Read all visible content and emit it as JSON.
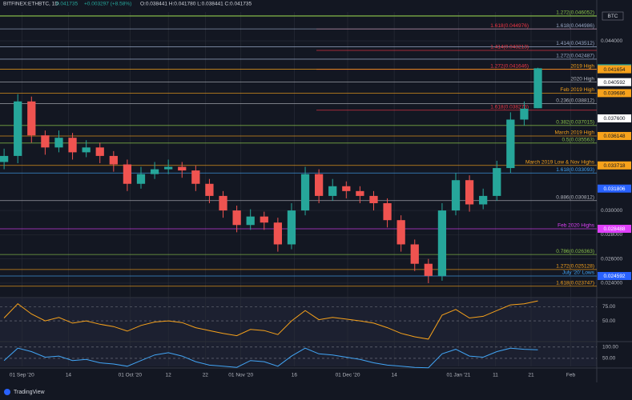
{
  "header": {
    "symbol": "BITFINEX:ETHBTC, 1D",
    "last": "0.041735",
    "change": "+0.003297 (+8.58%)",
    "ohlc": "O:0.038441 H:0.041780 L:0.038441 C:0.041735",
    "currency": "BTC"
  },
  "footer": {
    "brand": "TradingView"
  },
  "chart_data": {
    "type": "candlestick",
    "up_color": "#26a69a",
    "down_color": "#ef5350",
    "candles": [
      [
        0.034,
        0.0351,
        0.0334,
        0.0345
      ],
      [
        0.0345,
        0.0396,
        0.0339,
        0.039
      ],
      [
        0.039,
        0.0394,
        0.0356,
        0.0362
      ],
      [
        0.0362,
        0.0366,
        0.0346,
        0.0352
      ],
      [
        0.0352,
        0.0366,
        0.0348,
        0.036
      ],
      [
        0.036,
        0.0364,
        0.0342,
        0.0348
      ],
      [
        0.0348,
        0.0358,
        0.0344,
        0.0352
      ],
      [
        0.0352,
        0.0356,
        0.0339,
        0.0345
      ],
      [
        0.0345,
        0.0349,
        0.0332,
        0.0338
      ],
      [
        0.0338,
        0.0342,
        0.0316,
        0.0322
      ],
      [
        0.0322,
        0.0336,
        0.0318,
        0.033
      ],
      [
        0.033,
        0.034,
        0.0326,
        0.0334
      ],
      [
        0.0334,
        0.0342,
        0.033,
        0.0336
      ],
      [
        0.0336,
        0.034,
        0.0327,
        0.0333
      ],
      [
        0.0333,
        0.0337,
        0.0316,
        0.0322
      ],
      [
        0.0322,
        0.0326,
        0.0306,
        0.0312
      ],
      [
        0.0312,
        0.0316,
        0.0294,
        0.03
      ],
      [
        0.03,
        0.0304,
        0.0282,
        0.0288
      ],
      [
        0.0288,
        0.0301,
        0.0284,
        0.0295
      ],
      [
        0.0295,
        0.0299,
        0.0284,
        0.029
      ],
      [
        0.029,
        0.0294,
        0.0266,
        0.0272
      ],
      [
        0.0272,
        0.0306,
        0.0268,
        0.03
      ],
      [
        0.03,
        0.0336,
        0.0296,
        0.033
      ],
      [
        0.033,
        0.0334,
        0.0306,
        0.0312
      ],
      [
        0.0312,
        0.0326,
        0.0308,
        0.032
      ],
      [
        0.032,
        0.0324,
        0.031,
        0.0316
      ],
      [
        0.0316,
        0.032,
        0.0306,
        0.0312
      ],
      [
        0.0312,
        0.0316,
        0.03,
        0.0306
      ],
      [
        0.0306,
        0.031,
        0.0286,
        0.0292
      ],
      [
        0.0292,
        0.0296,
        0.0266,
        0.0272
      ],
      [
        0.0272,
        0.0276,
        0.025,
        0.0256
      ],
      [
        0.0256,
        0.026,
        0.024,
        0.0246
      ],
      [
        0.0246,
        0.0306,
        0.0242,
        0.03
      ],
      [
        0.03,
        0.0331,
        0.0296,
        0.0325
      ],
      [
        0.0325,
        0.0329,
        0.0299,
        0.0305
      ],
      [
        0.0305,
        0.0318,
        0.0301,
        0.0312
      ],
      [
        0.0312,
        0.0341,
        0.0308,
        0.0335
      ],
      [
        0.0335,
        0.0381,
        0.0331,
        0.0375
      ],
      [
        0.0375,
        0.039,
        0.037,
        0.0384
      ],
      [
        0.038441,
        0.04178,
        0.038441,
        0.041735
      ]
    ],
    "xlim": [
      -0.3,
      43.3
    ],
    "xticks": [
      {
        "value": 1.3,
        "label": "01 Sep '20"
      },
      {
        "value": 4.7,
        "label": "14"
      },
      {
        "value": 9.2,
        "label": "01 Oct '20"
      },
      {
        "value": 12.0,
        "label": "12"
      },
      {
        "value": 14.7,
        "label": "22"
      },
      {
        "value": 17.3,
        "label": "01 Nov '20"
      },
      {
        "value": 21.2,
        "label": "16"
      },
      {
        "value": 25.1,
        "label": "01 Dec '20"
      },
      {
        "value": 28.5,
        "label": "14"
      },
      {
        "value": 33.2,
        "label": "01 Jan '21"
      },
      {
        "value": 35.9,
        "label": "11"
      },
      {
        "value": 38.5,
        "label": "21"
      },
      {
        "value": 41.4,
        "label": "Feb"
      }
    ],
    "ylim": [
      0.02294,
      0.04638
    ],
    "yticks": [
      {
        "value": 0.044,
        "label": "0.044000"
      },
      {
        "value": 0.03,
        "label": "0.030000"
      },
      {
        "value": 0.028,
        "label": "0.028000"
      },
      {
        "value": 0.026,
        "label": "0.026000"
      },
      {
        "value": 0.024,
        "label": "0.024000"
      }
    ],
    "levels": [
      {
        "label": "1.272(0.046052)",
        "value": 0.046052,
        "color": "#8bc34a"
      },
      {
        "label": "1.618(0.044976)",
        "value": 0.044976,
        "color": "#f23645"
      },
      {
        "label": "1.618(0.044986)",
        "value": 0.044986,
        "color": "#9aa9c7"
      },
      {
        "label": "1.414(0.043512)",
        "value": 0.043512,
        "color": "#9aa9c7"
      },
      {
        "label": "1.414(0.043213)",
        "value": 0.043213,
        "color": "#f23645"
      },
      {
        "label": "1.272(0.042487)",
        "value": 0.042487,
        "color": "#9aa9c7"
      },
      {
        "label": "1.272(0.041646)",
        "value": 0.041646,
        "color": "#f23645"
      },
      {
        "label": "2019 High",
        "value": 0.041654,
        "color": "#f7a21b"
      },
      {
        "label": "2020 High",
        "value": 0.040592,
        "color": "#b2b5be"
      },
      {
        "label": "Feb 2019 High",
        "value": 0.039686,
        "color": "#f7a21b"
      },
      {
        "label": "0.236(0.038812)",
        "value": 0.038812,
        "color": "#b2b5be"
      },
      {
        "label": "1.618(0.038273)",
        "value": 0.038273,
        "color": "#f23645"
      },
      {
        "label": "0.382(0.037015)",
        "value": 0.037015,
        "color": "#8bc34a"
      },
      {
        "label": "March 2019 High",
        "value": 0.036148,
        "color": "#f7a21b"
      },
      {
        "label": "0.5(0.035563)",
        "value": 0.035563,
        "color": "#8bc34a"
      },
      {
        "label": "March 2019 Low & Nov Highs",
        "value": 0.033718,
        "color": "#f7a21b"
      },
      {
        "label": "1.618(0.033093)",
        "value": 0.033093,
        "color": "#42a5f5"
      },
      {
        "label": "0.886(0.030812)",
        "value": 0.030812,
        "color": "#b2b5be"
      },
      {
        "label": "Feb 2020 Highs",
        "value": 0.028488,
        "color": "#e040fb"
      },
      {
        "label": "0.786(0.026363)",
        "value": 0.026363,
        "color": "#8bc34a"
      },
      {
        "label": "1.272(0.025128)",
        "value": 0.025128,
        "color": "#f7a21b"
      },
      {
        "label": "July '20' Lows",
        "value": 0.024592,
        "color": "#42a5f5"
      },
      {
        "label": "1.618(0.023747)",
        "value": 0.023747,
        "color": "#f7a21b"
      }
    ],
    "markers": [
      {
        "value": 0.041735,
        "label": "0.041735",
        "color": "#26a69a"
      },
      {
        "value": 0.041654,
        "label": "0.041654",
        "color": "#f7a21b"
      },
      {
        "value": 0.040592,
        "label": "0.040592",
        "color": "#ffffff"
      },
      {
        "value": 0.039686,
        "label": "0.039686",
        "color": "#f7a21b"
      },
      {
        "value": 0.0376,
        "label": "0.037600",
        "color": "#ffffff"
      },
      {
        "value": 0.036148,
        "label": "0.036148",
        "color": "#f7a21b"
      },
      {
        "value": 0.033718,
        "label": "0.033718",
        "color": "#f7a21b"
      },
      {
        "value": 0.031806,
        "label": "0.031806",
        "color": "#2962ff"
      },
      {
        "value": 0.028488,
        "label": "0.028488",
        "color": "#e040fb"
      },
      {
        "value": 0.024592,
        "label": "0.024592",
        "color": "#2962ff"
      }
    ],
    "rsi": {
      "values": [
        55,
        80,
        62,
        50,
        56,
        46,
        50,
        44,
        40,
        32,
        42,
        48,
        50,
        47,
        38,
        33,
        28,
        24,
        35,
        33,
        26,
        50,
        68,
        52,
        56,
        53,
        50,
        46,
        38,
        28,
        22,
        18,
        60,
        70,
        55,
        58,
        68,
        78,
        80,
        85
      ],
      "color": "#f7a21b",
      "ylim": [
        15,
        88
      ],
      "yticks": [
        {
          "value": 75,
          "label": "75.00"
        },
        {
          "value": 50,
          "label": "50.00"
        }
      ]
    },
    "stoch": {
      "values": [
        40,
        95,
        80,
        55,
        60,
        40,
        45,
        30,
        25,
        15,
        40,
        65,
        75,
        60,
        35,
        20,
        15,
        10,
        40,
        35,
        15,
        60,
        95,
        70,
        65,
        55,
        45,
        30,
        20,
        15,
        10,
        8,
        70,
        90,
        60,
        55,
        80,
        95,
        90,
        88
      ],
      "color": "#42a5f5",
      "ylim": [
        0,
        110
      ],
      "yticks": [
        {
          "value": 100,
          "label": "100.00"
        },
        {
          "value": 50,
          "label": "50.00"
        }
      ]
    }
  }
}
